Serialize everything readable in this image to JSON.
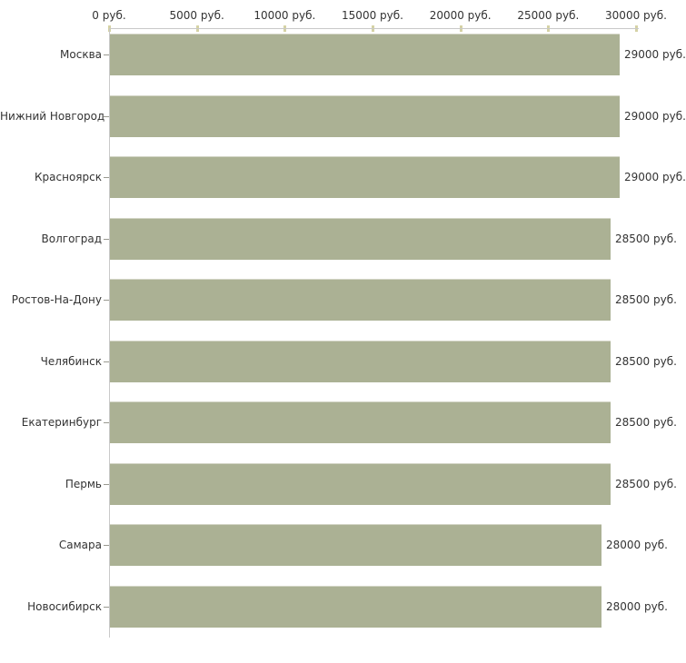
{
  "chart_data": {
    "type": "bar",
    "orientation": "horizontal",
    "title": "",
    "xlabel": "",
    "ylabel": "",
    "unit": "руб.",
    "categories": [
      "Москва",
      "Нижний Новгород",
      "Красноярск",
      "Волгоград",
      "Ростов-На-Дону",
      "Челябинск",
      "Екатеринбург",
      "Пермь",
      "Самара",
      "Новосибирск"
    ],
    "values": [
      29000,
      29000,
      29000,
      28500,
      28500,
      28500,
      28500,
      28500,
      28000,
      28000
    ],
    "value_labels": [
      "29000 руб.",
      "29000 руб.",
      "29000 руб.",
      "28500 руб.",
      "28500 руб.",
      "28500 руб.",
      "28500 руб.",
      "28500 руб.",
      "28000 руб.",
      "28000 руб."
    ],
    "x_ticks": [
      0,
      5000,
      10000,
      15000,
      20000,
      25000,
      30000
    ],
    "x_tick_labels": [
      "0 руб.",
      "5000 руб.",
      "10000 руб.",
      "15000 руб.",
      "20000 руб.",
      "25000 руб.",
      "30000 руб."
    ],
    "xlim": [
      0,
      30000
    ],
    "grid": false,
    "legend": false,
    "colors": {
      "bar_fill": "#abb194",
      "bar_top_edge": "#d3d5c6",
      "axis_line": "#c9c9c9",
      "x_tick_mark": "#d5d2a5",
      "y_tick_mark": "#999990",
      "text": "#333333",
      "background": "#ffffff"
    }
  }
}
